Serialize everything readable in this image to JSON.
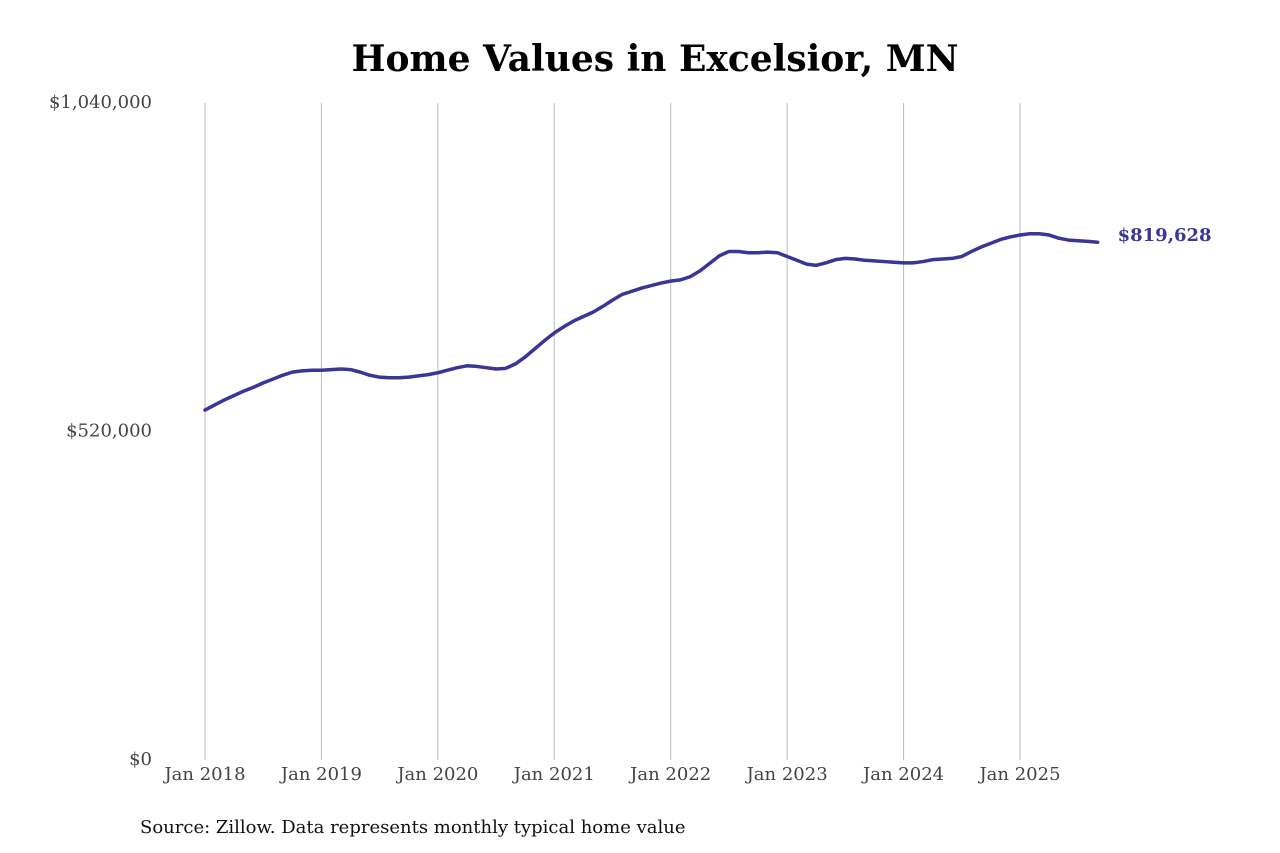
{
  "chart_data": {
    "type": "line",
    "title": "Home Values in Excelsior, MN",
    "source": "Source: Zillow. Data represents monthly typical home value",
    "x": [
      "2018-01",
      "2018-02",
      "2018-03",
      "2018-04",
      "2018-05",
      "2018-06",
      "2018-07",
      "2018-08",
      "2018-09",
      "2018-10",
      "2018-11",
      "2018-12",
      "2019-01",
      "2019-02",
      "2019-03",
      "2019-04",
      "2019-05",
      "2019-06",
      "2019-07",
      "2019-08",
      "2019-09",
      "2019-10",
      "2019-11",
      "2019-12",
      "2020-01",
      "2020-02",
      "2020-03",
      "2020-04",
      "2020-05",
      "2020-06",
      "2020-07",
      "2020-08",
      "2020-09",
      "2020-10",
      "2020-11",
      "2020-12",
      "2021-01",
      "2021-02",
      "2021-03",
      "2021-04",
      "2021-05",
      "2021-06",
      "2021-07",
      "2021-08",
      "2021-09",
      "2021-10",
      "2021-11",
      "2021-12",
      "2022-01",
      "2022-02",
      "2022-03",
      "2022-04",
      "2022-05",
      "2022-06",
      "2022-07",
      "2022-08",
      "2022-09",
      "2022-10",
      "2022-11",
      "2022-12",
      "2023-01",
      "2023-02",
      "2023-03",
      "2023-04",
      "2023-05",
      "2023-06",
      "2023-07",
      "2023-08",
      "2023-09",
      "2023-10",
      "2023-11",
      "2023-12",
      "2024-01",
      "2024-02",
      "2024-03",
      "2024-04",
      "2024-05",
      "2024-06",
      "2024-07",
      "2024-08",
      "2024-09",
      "2024-10",
      "2024-11",
      "2024-12",
      "2025-01",
      "2025-02",
      "2025-03",
      "2025-04",
      "2025-05",
      "2025-06",
      "2025-07",
      "2025-08",
      "2025-09"
    ],
    "series": [
      {
        "name": "Typical home value",
        "color": "#3a3596",
        "values": [
          554000,
          562000,
          570000,
          577000,
          584000,
          590000,
          597000,
          603000,
          609000,
          614000,
          616000,
          617000,
          617000,
          618000,
          619000,
          618000,
          614000,
          609000,
          606000,
          605000,
          605000,
          606000,
          608000,
          610000,
          613000,
          617000,
          621000,
          624000,
          623000,
          621000,
          619000,
          620000,
          627000,
          638000,
          651000,
          664000,
          676000,
          686000,
          695000,
          702000,
          709000,
          718000,
          728000,
          737000,
          742000,
          747000,
          751000,
          755000,
          758000,
          760000,
          765000,
          774000,
          786000,
          798000,
          805000,
          805000,
          803000,
          803000,
          804000,
          803000,
          797000,
          791000,
          785000,
          783000,
          787000,
          792000,
          794000,
          793000,
          791000,
          790000,
          789000,
          788000,
          787000,
          787000,
          789000,
          792000,
          793000,
          794000,
          797000,
          805000,
          812000,
          818000,
          824000,
          828000,
          831000,
          833000,
          833000,
          831000,
          826000,
          823000,
          822000,
          821000,
          819628
        ],
        "value_labels": [
          null,
          null,
          null,
          null,
          null,
          null,
          null,
          null,
          null,
          null,
          null,
          null,
          null,
          null,
          null,
          null,
          null,
          null,
          null,
          null,
          null,
          null,
          null,
          null,
          null,
          null,
          null,
          null,
          null,
          null,
          null,
          null,
          null,
          null,
          null,
          null,
          null,
          null,
          null,
          null,
          null,
          null,
          null,
          null,
          null,
          null,
          null,
          null,
          null,
          null,
          null,
          null,
          null,
          null,
          null,
          null,
          null,
          null,
          null,
          null,
          null,
          null,
          null,
          null,
          null,
          null,
          null,
          null,
          null,
          null,
          null,
          null,
          null,
          null,
          null,
          null,
          null,
          null,
          null,
          null,
          null,
          null,
          null,
          null,
          null,
          null,
          null,
          null,
          null,
          null,
          null,
          null,
          "$819,628"
        ]
      }
    ],
    "xticks": [
      {
        "value": "2018-01",
        "label": "Jan 2018"
      },
      {
        "value": "2019-01",
        "label": "Jan 2019"
      },
      {
        "value": "2020-01",
        "label": "Jan 2020"
      },
      {
        "value": "2021-01",
        "label": "Jan 2021"
      },
      {
        "value": "2022-01",
        "label": "Jan 2022"
      },
      {
        "value": "2023-01",
        "label": "Jan 2023"
      },
      {
        "value": "2024-01",
        "label": "Jan 2024"
      },
      {
        "value": "2025-01",
        "label": "Jan 2025"
      }
    ],
    "ylim": [
      0,
      1040000
    ],
    "yticks": [
      {
        "value": 0,
        "label": "$0"
      },
      {
        "value": 520000,
        "label": "$520,000"
      },
      {
        "value": 1040000,
        "label": "$1,040,000"
      }
    ],
    "grid": "x"
  }
}
